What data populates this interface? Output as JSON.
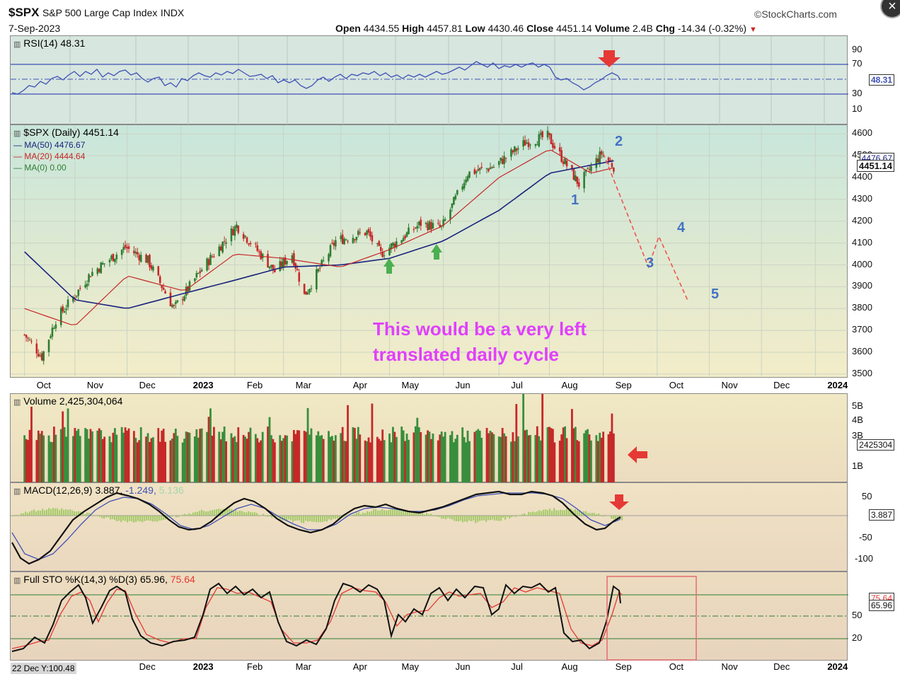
{
  "header": {
    "symbol": "$SPX",
    "name": "S&P 500 Large Cap Index",
    "exchange": "INDX",
    "date": "7-Sep-2023",
    "brand": "©StockCharts.com",
    "ohlc": {
      "open_label": "Open",
      "open": "4434.55",
      "high_label": "High",
      "high": "4457.81",
      "low_label": "Low",
      "low": "4430.46",
      "close_label": "Close",
      "close": "4451.14",
      "volume_label": "Volume",
      "volume": "2.4B",
      "chg_label": "Chg",
      "chg": "-14.34 (-0.32%)"
    }
  },
  "colors": {
    "up": "#2e7d32",
    "down": "#c62828",
    "ma50": "#1a237e",
    "ma20": "#c62828",
    "annotation": "#e040fb",
    "wave": "#4472c4",
    "arrow": "#e53935",
    "signal": "#3f51b5"
  },
  "months": [
    "Oct",
    "Nov",
    "Dec",
    "2023",
    "Feb",
    "Mar",
    "Apr",
    "May",
    "Jun",
    "Jul",
    "Aug",
    "Sep",
    "Oct",
    "Nov",
    "Dec",
    "2024"
  ],
  "months_bottom": [
    "Dec",
    "2023",
    "Feb",
    "Mar",
    "Apr",
    "May",
    "Jun",
    "Jul",
    "Aug",
    "Sep",
    "Oct",
    "Nov",
    "Dec",
    "2024"
  ],
  "rsi": {
    "legend": "RSI(14) 48.31",
    "value": "48.31",
    "ticks": [
      "90",
      "70",
      "50",
      "30",
      "10"
    ]
  },
  "price": {
    "legend_main": "$SPX (Daily) 4451.14",
    "legend_ma50": "MA(50) 4476.67",
    "legend_ma20": "MA(20) 4444.64",
    "legend_ma0": "MA(0) 0.00",
    "ticks": [
      "4600",
      "4500",
      "4400",
      "4300",
      "4200",
      "4100",
      "4000",
      "3900",
      "3800",
      "3700",
      "3600",
      "3500"
    ],
    "last_box": "4451.14",
    "ma_box": "4476.67",
    "annotation_line1": "This would be a very left",
    "annotation_line2": "translated daily cycle",
    "wave_labels": [
      "1",
      "2",
      "3",
      "4",
      "5"
    ]
  },
  "volume": {
    "legend": "Volume 2,425,304,064",
    "ticks": [
      "5B",
      "4B",
      "3B",
      "1B"
    ],
    "box": "2425304"
  },
  "macd": {
    "legend_main": "MACD(12,26,9) 3.887,",
    "legend_signal": "-1.249,",
    "legend_hist": "5.136",
    "ticks": [
      "50",
      "-50",
      "-100"
    ],
    "box": "3.887"
  },
  "sto": {
    "legend_main": "Full STO %K(14,3) %D(3) 65.96,",
    "legend_d": "75.64",
    "ticks": [
      "50",
      "20"
    ],
    "box_k": "65.96",
    "box_d": "75.64"
  },
  "footer": {
    "cursor_readout": "22 Dec Y:100.48"
  },
  "chart_data": {
    "type": "candlestick",
    "title": "$SPX S&P 500 Large Cap Index INDX",
    "date_range": [
      "2022-10-01",
      "2023-09-07"
    ],
    "ylim": [
      3480,
      4640
    ],
    "close_series_approx": {
      "dates": [
        "2022-10-03",
        "2022-10-13",
        "2022-10-21",
        "2022-11-01",
        "2022-11-10",
        "2022-11-30",
        "2022-12-13",
        "2022-12-28",
        "2023-01-13",
        "2023-02-02",
        "2023-02-24",
        "2023-03-06",
        "2023-03-13",
        "2023-03-31",
        "2023-04-18",
        "2023-04-26",
        "2023-05-19",
        "2023-05-31",
        "2023-06-15",
        "2023-06-30",
        "2023-07-18",
        "2023-07-31",
        "2023-08-18",
        "2023-08-31",
        "2023-09-07"
      ],
      "values": [
        3680,
        3580,
        3750,
        3860,
        3960,
        4080,
        4020,
        3800,
        3980,
        4180,
        3970,
        4050,
        3860,
        4110,
        4150,
        4050,
        4190,
        4170,
        4420,
        4450,
        4560,
        4590,
        4370,
        4510,
        4451
      ]
    },
    "ma50_approx": {
      "dates": [
        "2022-10-03",
        "2022-11-01",
        "2022-12-01",
        "2023-01-03",
        "2023-02-01",
        "2023-03-01",
        "2023-04-03",
        "2023-05-01",
        "2023-06-01",
        "2023-07-03",
        "2023-08-01",
        "2023-09-07"
      ],
      "values": [
        4060,
        3840,
        3800,
        3870,
        3930,
        3990,
        4000,
        4030,
        4110,
        4250,
        4420,
        4477
      ]
    },
    "ma20_approx": {
      "dates": [
        "2022-10-03",
        "2022-11-01",
        "2022-12-01",
        "2023-01-03",
        "2023-02-01",
        "2023-03-01",
        "2023-04-03",
        "2023-05-01",
        "2023-06-01",
        "2023-07-03",
        "2023-08-01",
        "2023-08-25",
        "2023-09-07"
      ],
      "values": [
        3800,
        3720,
        3950,
        3880,
        4050,
        4030,
        3990,
        4070,
        4180,
        4400,
        4530,
        4420,
        4445
      ]
    },
    "projection": {
      "points": [
        [
          "2023-09-01",
          4510
        ],
        [
          "2023-09-27",
          3990
        ],
        [
          "2023-10-03",
          4130
        ],
        [
          "2023-10-20",
          3830
        ]
      ],
      "wave_labels": [
        [
          "1",
          "2023-08-18",
          4300
        ],
        [
          "2",
          "2023-09-01",
          4540
        ],
        [
          "3",
          "2023-09-26",
          3990
        ],
        [
          "4",
          "2023-10-03",
          4150
        ],
        [
          "5",
          "2023-10-20",
          3850
        ]
      ]
    },
    "indicators": {
      "rsi": {
        "period": 14,
        "value": 48.31,
        "levels": [
          70,
          30
        ]
      },
      "volume": {
        "last": 2425304064
      },
      "macd": {
        "params": [
          12,
          26,
          9
        ],
        "macd": 3.887,
        "signal": -1.249,
        "hist": 5.136
      },
      "full_sto": {
        "params": [
          14,
          3,
          3
        ],
        "k": 65.96,
        "d": 75.64,
        "levels": [
          80,
          50,
          20
        ]
      }
    }
  }
}
